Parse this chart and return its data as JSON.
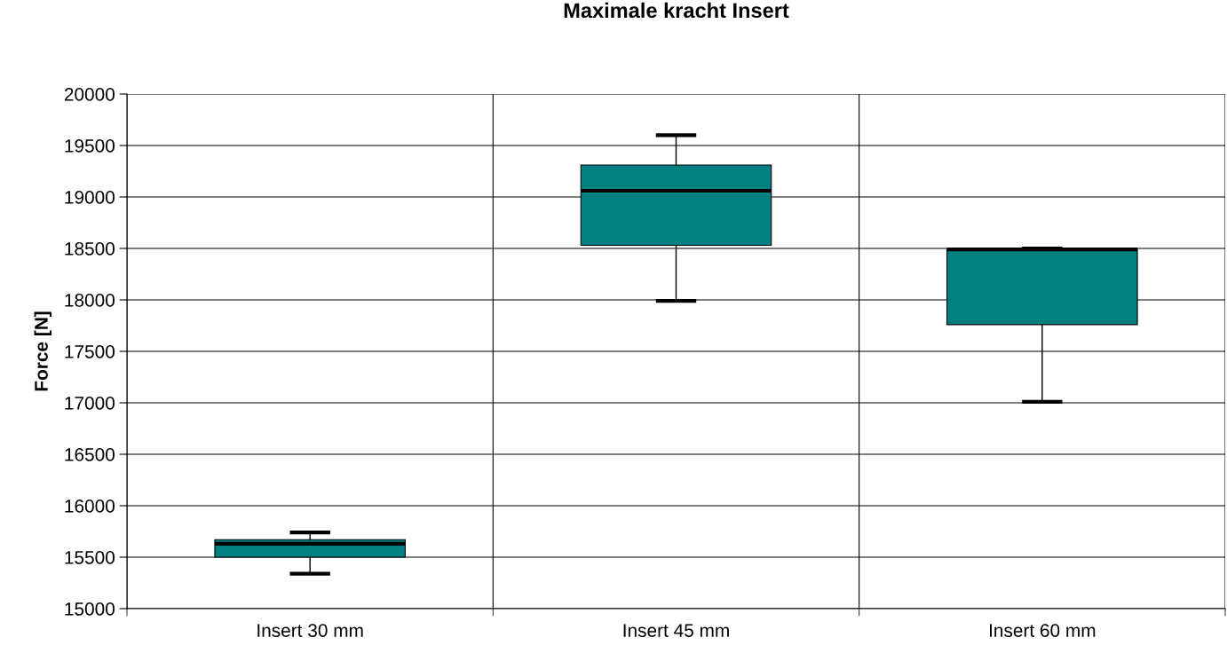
{
  "chart_data": {
    "type": "box",
    "title": "Maximale kracht Insert",
    "ylabel": "Force [N]",
    "categories": [
      "Insert 30 mm",
      "Insert 45 mm",
      "Insert 60 mm"
    ],
    "boxes": [
      {
        "low": 15340,
        "q1": 15500,
        "median": 15630,
        "q3": 15670,
        "high": 15740
      },
      {
        "low": 17990,
        "q1": 18530,
        "median": 19060,
        "q3": 19310,
        "high": 19600
      },
      {
        "low": 17010,
        "q1": 17760,
        "median": 18490,
        "q3": 18490,
        "high": 18500
      }
    ],
    "color": "#008080",
    "ylim": [
      15000,
      20000
    ],
    "yticks": [
      15000,
      15500,
      16000,
      16500,
      17000,
      17500,
      18000,
      18500,
      19000,
      19500,
      20000
    ],
    "grid": true,
    "legend": false
  }
}
